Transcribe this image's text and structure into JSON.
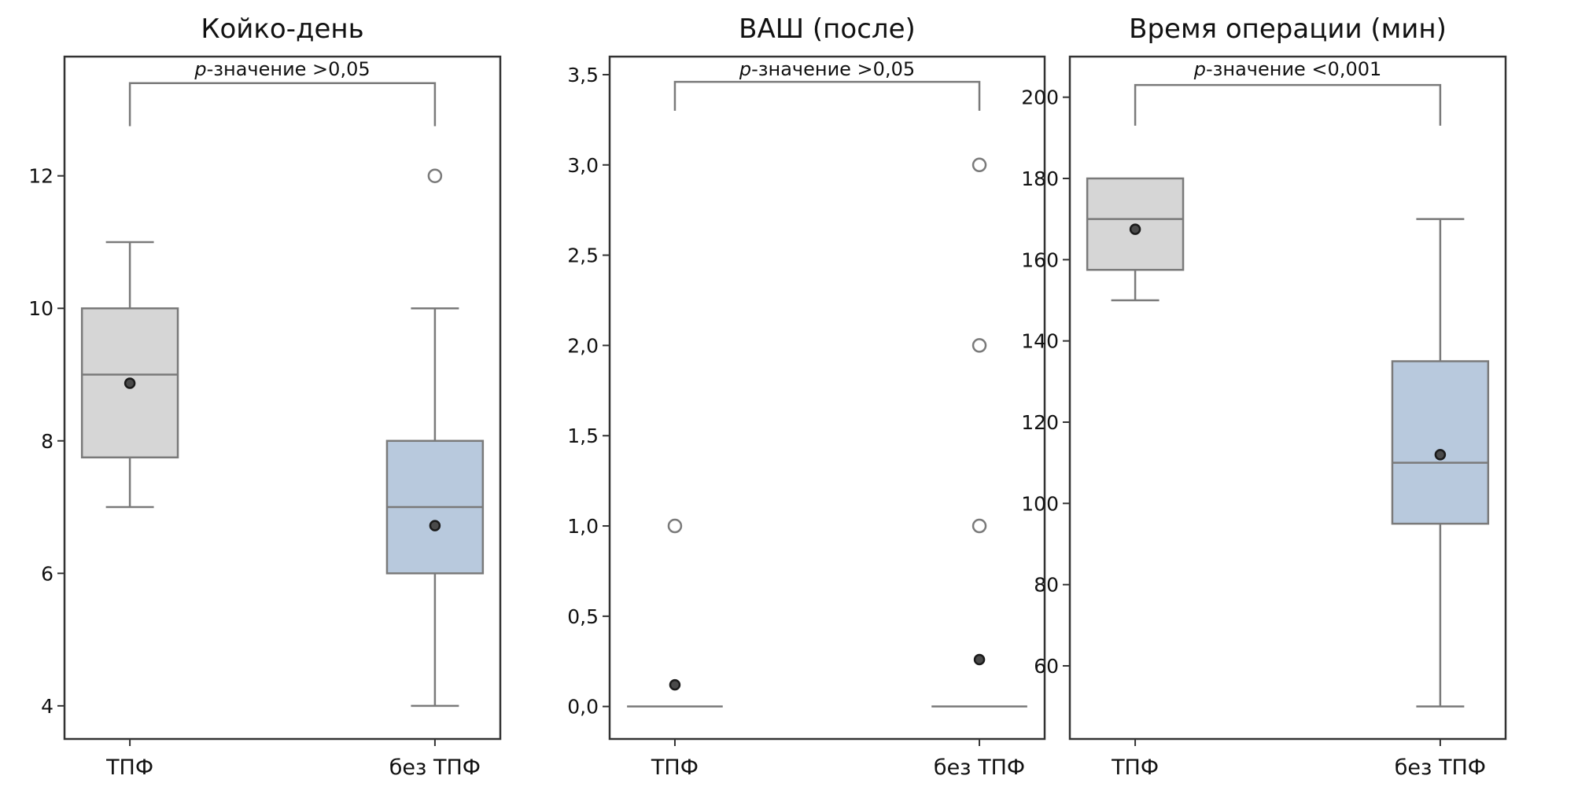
{
  "chart_data": [
    {
      "type": "box",
      "title": "Койко-день",
      "categories": [
        "ТПФ",
        "без ТПФ"
      ],
      "ylim": [
        3.5,
        13.8
      ],
      "yticks": [
        4,
        6,
        8,
        10,
        12
      ],
      "ytick_labels": [
        "4",
        "6",
        "8",
        "10",
        "12"
      ],
      "p_prefix": "p",
      "p_text": "-значение >0,05",
      "bracket_y": 13.4,
      "bracket_drop": 12.75,
      "colors": [
        "#d6d6d6",
        "#b8c9dd"
      ],
      "boxes": [
        {
          "whisker_low": 7,
          "q1": 7.75,
          "median": 9,
          "q3": 10,
          "whisker_high": 11,
          "mean": 8.87,
          "outliers": []
        },
        {
          "whisker_low": 4,
          "q1": 6,
          "median": 7,
          "q3": 8,
          "whisker_high": 10,
          "mean": 6.72,
          "outliers": [
            12
          ]
        }
      ]
    },
    {
      "type": "box",
      "title": "ВАШ (после)",
      "categories": [
        "ТПФ",
        "без ТПФ"
      ],
      "ylim": [
        -0.18,
        3.6
      ],
      "yticks": [
        0,
        0.5,
        1,
        1.5,
        2,
        2.5,
        3,
        3.5
      ],
      "ytick_labels": [
        "0,0",
        "0,5",
        "1,0",
        "1,5",
        "2,0",
        "2,5",
        "3,0",
        "3,5"
      ],
      "p_prefix": "p",
      "p_text": "-значение >0,05",
      "bracket_y": 3.46,
      "bracket_drop": 3.3,
      "colors": [
        "#d6d6d6",
        "#b8c9dd"
      ],
      "boxes": [
        {
          "whisker_low": 0,
          "q1": 0,
          "median": 0,
          "q3": 0,
          "whisker_high": 0,
          "mean": 0.12,
          "outliers": [
            1
          ]
        },
        {
          "whisker_low": 0,
          "q1": 0,
          "median": 0,
          "q3": 0,
          "whisker_high": 0,
          "mean": 0.26,
          "outliers": [
            1,
            2,
            3
          ]
        }
      ]
    },
    {
      "type": "box",
      "title": "Время операции (мин)",
      "categories": [
        "ТПФ",
        "без ТПФ"
      ],
      "ylim": [
        42,
        210
      ],
      "yticks": [
        60,
        80,
        100,
        120,
        140,
        160,
        180,
        200
      ],
      "ytick_labels": [
        "60",
        "80",
        "100",
        "120",
        "140",
        "160",
        "180",
        "200"
      ],
      "p_prefix": "p",
      "p_text": "-значение <0,001",
      "bracket_y": 203,
      "bracket_drop": 193,
      "colors": [
        "#d6d6d6",
        "#b8c9dd"
      ],
      "boxes": [
        {
          "whisker_low": 150,
          "q1": 157.5,
          "median": 170,
          "q3": 180,
          "whisker_high": 180,
          "mean": 167.5,
          "outliers": []
        },
        {
          "whisker_low": 50,
          "q1": 95,
          "median": 110,
          "q3": 135,
          "whisker_high": 170,
          "mean": 112,
          "outliers": []
        }
      ]
    }
  ]
}
